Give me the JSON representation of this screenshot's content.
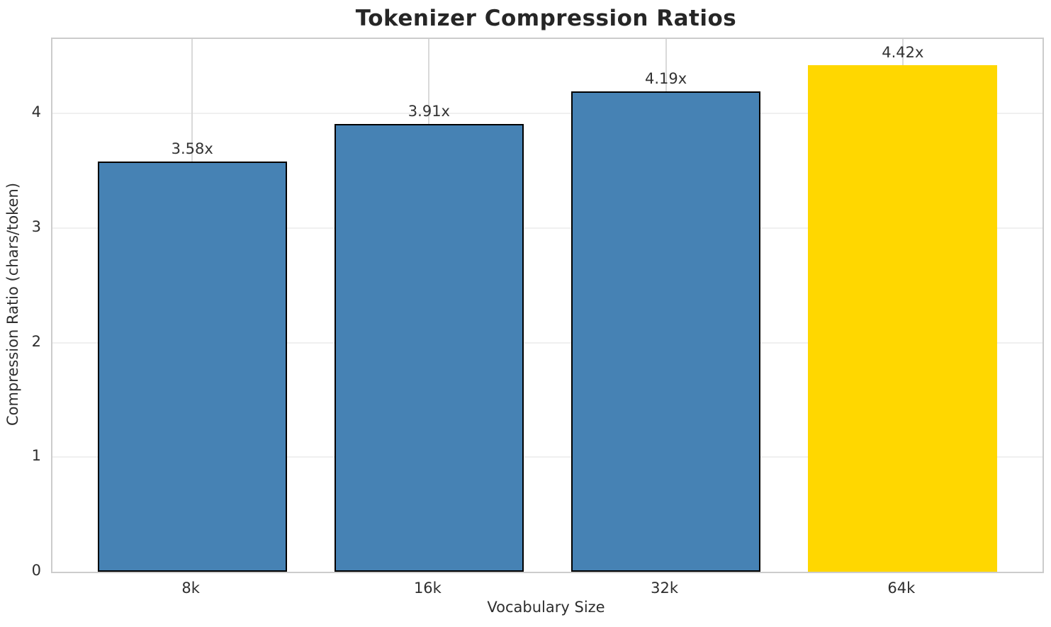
{
  "chart_data": {
    "type": "bar",
    "title": "Tokenizer Compression Ratios",
    "xlabel": "Vocabulary Size",
    "ylabel": "Compression Ratio (chars/token)",
    "categories": [
      "8k",
      "16k",
      "32k",
      "64k"
    ],
    "values": [
      3.58,
      3.91,
      4.19,
      4.42
    ],
    "bar_labels": [
      "3.58x",
      "3.91x",
      "4.19x",
      "4.42x"
    ],
    "yticks": [
      0,
      1,
      2,
      3,
      4
    ],
    "ylim": [
      0,
      4.65
    ],
    "grid": true,
    "legend": null,
    "highlight_index": 3,
    "colors": {
      "bar_default": "#4682B4",
      "bar_highlight": "#FFD700",
      "bar_edge": "#000000",
      "grid_horizontal": "#f0f0f0",
      "grid_vertical": "#d9d9d9",
      "spine": "#cccccc",
      "text": "#2e2e2e",
      "title_text": "#262626"
    }
  }
}
